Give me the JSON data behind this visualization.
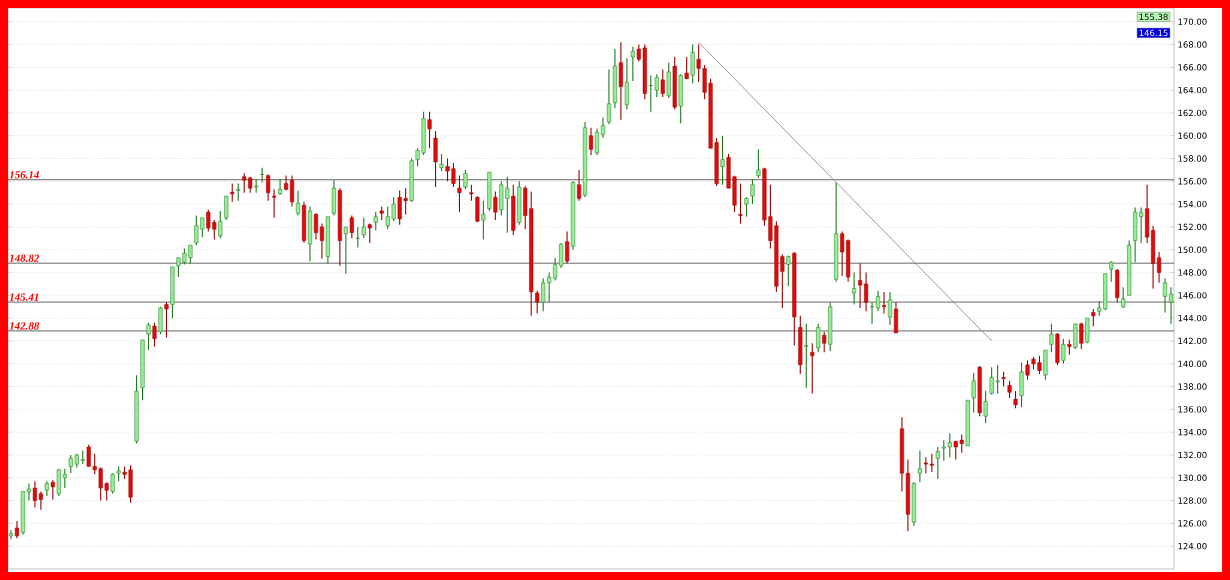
{
  "chart_data": {
    "type": "candlestick",
    "categories": [
      null,
      null,
      null,
      null,
      null,
      null,
      null,
      null,
      null,
      null,
      null,
      null,
      null,
      null,
      null,
      null,
      null,
      null,
      null,
      null,
      null,
      null,
      null,
      null,
      null,
      null,
      null,
      null,
      null,
      null,
      null,
      null,
      null,
      null,
      null,
      null,
      null,
      null,
      null,
      null,
      null,
      null,
      null,
      null,
      null,
      null,
      null,
      null,
      null,
      null,
      null,
      null,
      null,
      null,
      null,
      null,
      null,
      null,
      null,
      null,
      null,
      null,
      null,
      null,
      null,
      null,
      null,
      null,
      null,
      null,
      null,
      null,
      null,
      null,
      null,
      null,
      null,
      null,
      null,
      null,
      null,
      null,
      null,
      null,
      null,
      null,
      null,
      null,
      null,
      null,
      null,
      null,
      null,
      null,
      null,
      null,
      null,
      null,
      null,
      null,
      null,
      null,
      null,
      null,
      null,
      null,
      null,
      null,
      null,
      null,
      null,
      null,
      null,
      null,
      null,
      null,
      null,
      null,
      null,
      null,
      null,
      null,
      null,
      null,
      null,
      null,
      null,
      null,
      null,
      null,
      null,
      null,
      null,
      null,
      null,
      null,
      null,
      null,
      null,
      null,
      null,
      null,
      null,
      null,
      null,
      null,
      null,
      null,
      null,
      null,
      null,
      null,
      null,
      null,
      null,
      null,
      null,
      null,
      null,
      null,
      null,
      null,
      null,
      null,
      null,
      null,
      null,
      null,
      null,
      null,
      null,
      null,
      null,
      null,
      null,
      null,
      null,
      null,
      null,
      null,
      null,
      null,
      null,
      null,
      null,
      null,
      null,
      null,
      null,
      null,
      null,
      null,
      null,
      null,
      null
    ],
    "ohlc": [
      [
        124.9,
        125.4,
        124.6,
        125.1
      ],
      [
        125.6,
        126.2,
        124.7,
        124.9
      ],
      [
        125.2,
        128.8,
        125.0,
        128.8
      ],
      [
        128.75,
        129.5,
        128.0,
        129.0
      ],
      [
        129.1,
        129.7,
        127.4,
        128.0
      ],
      [
        128.6,
        128.8,
        127.2,
        128.1
      ],
      [
        128.9,
        129.7,
        128.4,
        129.5
      ],
      [
        129.6,
        129.8,
        128.1,
        129.2
      ],
      [
        128.6,
        130.8,
        128.4,
        130.7
      ],
      [
        130.0,
        130.8,
        129.1,
        130.3
      ],
      [
        131.0,
        132.0,
        130.4,
        131.7
      ],
      [
        131.2,
        132.1,
        130.9,
        132.0
      ],
      [
        131.5,
        132.4,
        131.2,
        131.6
      ],
      [
        132.7,
        132.9,
        131.0,
        131.0
      ],
      [
        131.0,
        132.1,
        130.3,
        130.7
      ],
      [
        130.8,
        130.9,
        128.0,
        129.1
      ],
      [
        129.5,
        129.6,
        128.0,
        128.9
      ],
      [
        128.8,
        130.4,
        128.6,
        130.3
      ],
      [
        130.4,
        131.0,
        129.7,
        130.6
      ],
      [
        130.5,
        131.0,
        129.9,
        130.3
      ],
      [
        130.7,
        131.1,
        127.8,
        128.3
      ],
      [
        133.2,
        139.0,
        133.0,
        137.6
      ],
      [
        137.9,
        142.1,
        136.8,
        142.1
      ],
      [
        142.6,
        143.6,
        141.2,
        143.4
      ],
      [
        143.3,
        143.6,
        141.5,
        142.2
      ],
      [
        142.8,
        145.0,
        142.6,
        144.9
      ],
      [
        145.2,
        145.4,
        142.3,
        144.8
      ],
      [
        145.2,
        148.5,
        144.0,
        148.5
      ],
      [
        148.6,
        149.3,
        147.6,
        149.3
      ],
      [
        148.9,
        150.1,
        148.7,
        149.7
      ],
      [
        149.3,
        150.4,
        148.8,
        150.4
      ],
      [
        150.6,
        153.0,
        150.4,
        152.1
      ],
      [
        151.8,
        152.8,
        151.1,
        152.8
      ],
      [
        153.3,
        153.5,
        151.6,
        151.9
      ],
      [
        152.4,
        152.6,
        150.9,
        151.8
      ],
      [
        151.2,
        153.4,
        151.0,
        152.5
      ],
      [
        152.8,
        154.7,
        152.6,
        154.7
      ],
      [
        155.05,
        155.8,
        154.2,
        154.9
      ],
      [
        155.2,
        155.8,
        154.3,
        155.3
      ],
      [
        156.4,
        156.7,
        155.0,
        156.1
      ],
      [
        156.3,
        156.4,
        155.0,
        155.4
      ],
      [
        155.5,
        156.2,
        155.0,
        155.6
      ],
      [
        156.6,
        157.2,
        155.9,
        156.6
      ],
      [
        156.5,
        156.6,
        154.3,
        155.0
      ],
      [
        154.7,
        155.3,
        152.8,
        154.6
      ],
      [
        154.9,
        156.2,
        154.8,
        155.3
      ],
      [
        155.8,
        156.5,
        155.2,
        155.3
      ],
      [
        156.1,
        156.5,
        153.8,
        154.2
      ],
      [
        153.2,
        155.2,
        153.0,
        154.1
      ],
      [
        153.9,
        154.2,
        150.6,
        150.8
      ],
      [
        150.5,
        153.8,
        149.0,
        153.4
      ],
      [
        153.1,
        153.2,
        150.9,
        151.5
      ],
      [
        152.0,
        152.3,
        149.2,
        150.8
      ],
      [
        149.4,
        152.9,
        148.8,
        152.9
      ],
      [
        153.2,
        156.1,
        153.0,
        155.4
      ],
      [
        155.2,
        155.4,
        148.6,
        150.8
      ],
      [
        151.4,
        152.0,
        147.9,
        152.0
      ],
      [
        152.8,
        153.0,
        151.0,
        151.5
      ],
      [
        151.0,
        152.0,
        150.2,
        151.0
      ],
      [
        151.3,
        152.8,
        151.0,
        152.0
      ],
      [
        152.2,
        152.3,
        150.6,
        151.9
      ],
      [
        152.4,
        153.3,
        151.7,
        152.9
      ],
      [
        153.4,
        153.8,
        152.6,
        153.2
      ],
      [
        152.1,
        153.8,
        151.8,
        152.9
      ],
      [
        152.7,
        154.6,
        152.5,
        154.0
      ],
      [
        154.6,
        155.2,
        152.2,
        152.7
      ],
      [
        154.5,
        155.4,
        153.1,
        154.3
      ],
      [
        154.3,
        158.0,
        154.2,
        157.8
      ],
      [
        157.9,
        158.9,
        157.3,
        158.7
      ],
      [
        158.5,
        162.1,
        158.3,
        161.5
      ],
      [
        161.4,
        162.1,
        158.9,
        160.6
      ],
      [
        159.8,
        160.4,
        155.5,
        157.7
      ],
      [
        157.2,
        158.4,
        156.9,
        157.5
      ],
      [
        157.3,
        158.0,
        156.0,
        156.9
      ],
      [
        157.1,
        157.6,
        155.5,
        155.8
      ],
      [
        155.4,
        156.5,
        153.3,
        155.0
      ],
      [
        155.5,
        157.0,
        155.3,
        156.7
      ],
      [
        155.0,
        155.7,
        154.3,
        154.9
      ],
      [
        154.6,
        154.7,
        152.4,
        152.5
      ],
      [
        152.6,
        154.3,
        150.9,
        153.1
      ],
      [
        153.6,
        156.8,
        153.4,
        156.8
      ],
      [
        154.6,
        155.1,
        152.6,
        153.3
      ],
      [
        153.5,
        156.0,
        153.0,
        155.7
      ],
      [
        154.5,
        156.4,
        151.5,
        155.4
      ],
      [
        154.7,
        155.7,
        151.3,
        151.7
      ],
      [
        152.4,
        156.0,
        152.2,
        155.5
      ],
      [
        155.4,
        155.6,
        151.8,
        153.0
      ],
      [
        153.6,
        155.1,
        144.2,
        146.3
      ],
      [
        146.2,
        146.4,
        144.4,
        145.4
      ],
      [
        145.4,
        147.5,
        144.6,
        147.1
      ],
      [
        147.1,
        148.0,
        145.4,
        147.6
      ],
      [
        147.5,
        149.3,
        147.3,
        148.7
      ],
      [
        148.6,
        150.6,
        148.4,
        150.5
      ],
      [
        150.7,
        151.6,
        148.8,
        149.0
      ],
      [
        150.3,
        156.0,
        150.0,
        155.9
      ],
      [
        155.7,
        157.0,
        154.3,
        154.5
      ],
      [
        154.8,
        161.2,
        154.6,
        160.7
      ],
      [
        160.0,
        160.7,
        158.3,
        158.8
      ],
      [
        158.5,
        160.6,
        158.3,
        160.3
      ],
      [
        160.1,
        161.6,
        159.8,
        160.9
      ],
      [
        161.2,
        165.8,
        161.0,
        162.8
      ],
      [
        162.9,
        167.6,
        162.4,
        166.1
      ],
      [
        166.4,
        168.2,
        161.4,
        164.3
      ],
      [
        162.7,
        166.8,
        162.3,
        164.7
      ],
      [
        166.9,
        167.8,
        164.8,
        167.4
      ],
      [
        167.6,
        168.0,
        166.5,
        166.7
      ],
      [
        167.7,
        168.0,
        163.2,
        163.7
      ],
      [
        164.4,
        165.3,
        162.1,
        164.4
      ],
      [
        164.0,
        165.4,
        163.4,
        165.1
      ],
      [
        164.9,
        165.8,
        163.4,
        163.7
      ],
      [
        163.5,
        166.4,
        163.3,
        165.6
      ],
      [
        166.1,
        166.9,
        162.3,
        162.5
      ],
      [
        162.6,
        165.4,
        161.1,
        165.3
      ],
      [
        165.5,
        166.9,
        165.0,
        165.0
      ],
      [
        165.3,
        168.0,
        164.6,
        167.3
      ],
      [
        166.7,
        168.0,
        164.7,
        165.9
      ],
      [
        165.9,
        166.2,
        163.2,
        163.8
      ],
      [
        164.6,
        165.0,
        158.9,
        158.9
      ],
      [
        159.4,
        159.8,
        155.6,
        155.8
      ],
      [
        157.3,
        160.0,
        155.7,
        157.9
      ],
      [
        158.1,
        158.4,
        155.4,
        155.4
      ],
      [
        156.4,
        156.5,
        153.3,
        153.9
      ],
      [
        153.1,
        155.8,
        152.3,
        153.0
      ],
      [
        154.0,
        154.6,
        152.9,
        154.5
      ],
      [
        154.7,
        156.2,
        154.0,
        155.7
      ],
      [
        156.5,
        158.8,
        156.3,
        157.0
      ],
      [
        157.1,
        157.2,
        152.1,
        152.6
      ],
      [
        152.9,
        155.7,
        150.1,
        150.8
      ],
      [
        152.1,
        152.5,
        146.3,
        146.8
      ],
      [
        149.4,
        149.6,
        144.9,
        148.1
      ],
      [
        148.7,
        149.5,
        146.8,
        149.4
      ],
      [
        149.7,
        149.8,
        141.6,
        144.1
      ],
      [
        143.2,
        144.2,
        139.1,
        139.9
      ],
      [
        141.5,
        143.5,
        137.9,
        141.6
      ],
      [
        141.0,
        141.8,
        137.4,
        140.7
      ],
      [
        141.4,
        143.5,
        141.0,
        143.2
      ],
      [
        142.5,
        142.8,
        141.0,
        141.8
      ],
      [
        141.7,
        145.4,
        141.1,
        145.0
      ],
      [
        147.4,
        155.9,
        147.2,
        151.4
      ],
      [
        151.4,
        151.6,
        147.7,
        149.8
      ],
      [
        150.8,
        150.9,
        147.2,
        147.6
      ],
      [
        146.2,
        148.0,
        145.2,
        146.6
      ],
      [
        147.3,
        148.8,
        144.9,
        146.9
      ],
      [
        147.0,
        148.0,
        144.6,
        145.4
      ],
      [
        145.0,
        145.4,
        143.5,
        145.0
      ],
      [
        144.9,
        146.4,
        144.6,
        145.9
      ],
      [
        145.1,
        146.3,
        144.4,
        145.0
      ],
      [
        144.1,
        146.3,
        143.4,
        145.6
      ],
      [
        144.8,
        145.4,
        142.7,
        142.7
      ],
      [
        134.3,
        135.3,
        128.8,
        130.4
      ],
      [
        130.4,
        131.6,
        125.3,
        126.8
      ],
      [
        126.1,
        129.6,
        125.8,
        129.5
      ],
      [
        130.4,
        132.4,
        129.6,
        130.8
      ],
      [
        131.3,
        131.8,
        130.4,
        131.2
      ],
      [
        131.2,
        132.1,
        130.5,
        131.1
      ],
      [
        131.7,
        132.7,
        129.9,
        132.3
      ],
      [
        132.6,
        133.3,
        131.5,
        132.7
      ],
      [
        132.7,
        133.9,
        131.8,
        133.1
      ],
      [
        133.2,
        133.2,
        131.6,
        132.7
      ],
      [
        133.3,
        133.8,
        132.2,
        133.0
      ],
      [
        132.8,
        136.8,
        132.8,
        136.8
      ],
      [
        137.0,
        139.2,
        135.7,
        138.5
      ],
      [
        139.7,
        139.8,
        135.4,
        135.7
      ],
      [
        135.4,
        137.6,
        134.8,
        136.7
      ],
      [
        137.4,
        139.7,
        137.3,
        138.8
      ],
      [
        138.4,
        139.9,
        137.4,
        138.5
      ],
      [
        138.8,
        139.3,
        138.0,
        138.7
      ],
      [
        138.1,
        138.5,
        137.0,
        137.5
      ],
      [
        136.9,
        137.6,
        136.1,
        136.4
      ],
      [
        137.2,
        140.1,
        136.2,
        139.3
      ],
      [
        139.9,
        140.3,
        138.6,
        139.0
      ],
      [
        140.4,
        140.6,
        139.5,
        140.0
      ],
      [
        140.1,
        140.7,
        139.1,
        139.4
      ],
      [
        139.0,
        141.2,
        138.6,
        141.2
      ],
      [
        141.7,
        143.5,
        141.0,
        142.6
      ],
      [
        142.6,
        142.7,
        139.9,
        140.1
      ],
      [
        140.3,
        142.2,
        140.0,
        141.7
      ],
      [
        141.7,
        142.1,
        140.8,
        141.5
      ],
      [
        141.4,
        143.5,
        141.3,
        143.5
      ],
      [
        143.5,
        143.6,
        141.3,
        141.8
      ],
      [
        141.9,
        144.0,
        141.8,
        144.0
      ],
      [
        144.5,
        144.8,
        143.3,
        144.2
      ],
      [
        144.6,
        145.5,
        144.2,
        144.9
      ],
      [
        144.8,
        147.9,
        144.7,
        147.9
      ],
      [
        148.3,
        149.0,
        147.2,
        148.9
      ],
      [
        148.2,
        148.3,
        145.4,
        145.8
      ],
      [
        145.0,
        146.7,
        144.9,
        145.7
      ],
      [
        146.0,
        150.8,
        146.0,
        150.4
      ],
      [
        150.8,
        153.7,
        148.9,
        153.3
      ],
      [
        152.9,
        153.7,
        150.6,
        153.3
      ],
      [
        153.6,
        155.7,
        150.6,
        151.1
      ],
      [
        151.7,
        152.1,
        146.6,
        148.8
      ],
      [
        149.3,
        149.8,
        147.1,
        148.0
      ],
      [
        145.9,
        147.5,
        144.5,
        147.1
      ],
      [
        145.4,
        146.7,
        143.5,
        146.1
      ]
    ],
    "series": [
      {
        "type": "line",
        "color": "#808080",
        "values": [
          null,
          null,
          null,
          null,
          null,
          null,
          null,
          null,
          null,
          null,
          null,
          null,
          null,
          null,
          null,
          null,
          null,
          null,
          null,
          null,
          null,
          null,
          null,
          null,
          null,
          null,
          null,
          null,
          null,
          null,
          null,
          null,
          null,
          null,
          null,
          null,
          null,
          null,
          null,
          null,
          null,
          null,
          null,
          null,
          null,
          null,
          null,
          null,
          null,
          null,
          null,
          null,
          null,
          null,
          null,
          null,
          null,
          null,
          null,
          null,
          null,
          null,
          null,
          null,
          null,
          null,
          null,
          null,
          null,
          null,
          null,
          null,
          null,
          null,
          null,
          null,
          null,
          null,
          null,
          null,
          null,
          null,
          null,
          null,
          null,
          null,
          null,
          null,
          null,
          null,
          null,
          null,
          null,
          null,
          null,
          null,
          null,
          null,
          null,
          null,
          null,
          null,
          null,
          null,
          null,
          null,
          null,
          null,
          null,
          null,
          null,
          null,
          null,
          null,
          null,
          168.2,
          null,
          null,
          null,
          null,
          null,
          null,
          null,
          null,
          null,
          null,
          null,
          null,
          null,
          null,
          null,
          null,
          null,
          null,
          null,
          null,
          null,
          null,
          null,
          null,
          null,
          null,
          null,
          null,
          null,
          null,
          null,
          null,
          null,
          null,
          null,
          null,
          null,
          null,
          null,
          null,
          null,
          null,
          null,
          null,
          null,
          null,
          null,
          null,
          142.0,
          null,
          null,
          null,
          null,
          null,
          null,
          null,
          null,
          null,
          null,
          null,
          null,
          null,
          null,
          null,
          null,
          null,
          null,
          null,
          null,
          null,
          null,
          null,
          null,
          null,
          null,
          null,
          null,
          null,
          null
        ]
      }
    ],
    "ylim": [
      122,
      171.2
    ],
    "yticks": [
      {
        "value": 124,
        "label": "124.00"
      },
      {
        "value": 126,
        "label": "126.00"
      },
      {
        "value": 128,
        "label": "128.00"
      },
      {
        "value": 130,
        "label": "130.00"
      },
      {
        "value": 132,
        "label": "132.00"
      },
      {
        "value": 134,
        "label": "134.00"
      },
      {
        "value": 136,
        "label": "136.00"
      },
      {
        "value": 138,
        "label": "138.00"
      },
      {
        "value": 140,
        "label": "140.00"
      },
      {
        "value": 142,
        "label": "142.00"
      },
      {
        "value": 144,
        "label": "144.00"
      },
      {
        "value": 146,
        "label": "146.00"
      },
      {
        "value": 148,
        "label": "148.00"
      },
      {
        "value": 150,
        "label": "150.00"
      },
      {
        "value": 152,
        "label": "152.00"
      },
      {
        "value": 154,
        "label": "154.00"
      },
      {
        "value": 156,
        "label": "156.00"
      },
      {
        "value": 158,
        "label": "158.00"
      },
      {
        "value": 160,
        "label": "160.00"
      },
      {
        "value": 162,
        "label": "162.00"
      },
      {
        "value": 164,
        "label": "164.00"
      },
      {
        "value": 166,
        "label": "166.00"
      },
      {
        "value": 168,
        "label": "168.00"
      },
      {
        "value": 170,
        "label": "170.00"
      }
    ],
    "ref_lines": [
      {
        "axis": "y",
        "value": 156.14,
        "label": "156.14",
        "color": "#000000"
      },
      {
        "axis": "y",
        "value": 148.82,
        "label": "148.82",
        "color": "#000000"
      },
      {
        "axis": "y",
        "value": 145.41,
        "label": "145.41",
        "color": "#000000"
      },
      {
        "axis": "y",
        "value": 142.88,
        "label": "142.88",
        "color": "#000000"
      }
    ],
    "annotations": [
      "155.38",
      "146.15"
    ],
    "grid": "y"
  }
}
